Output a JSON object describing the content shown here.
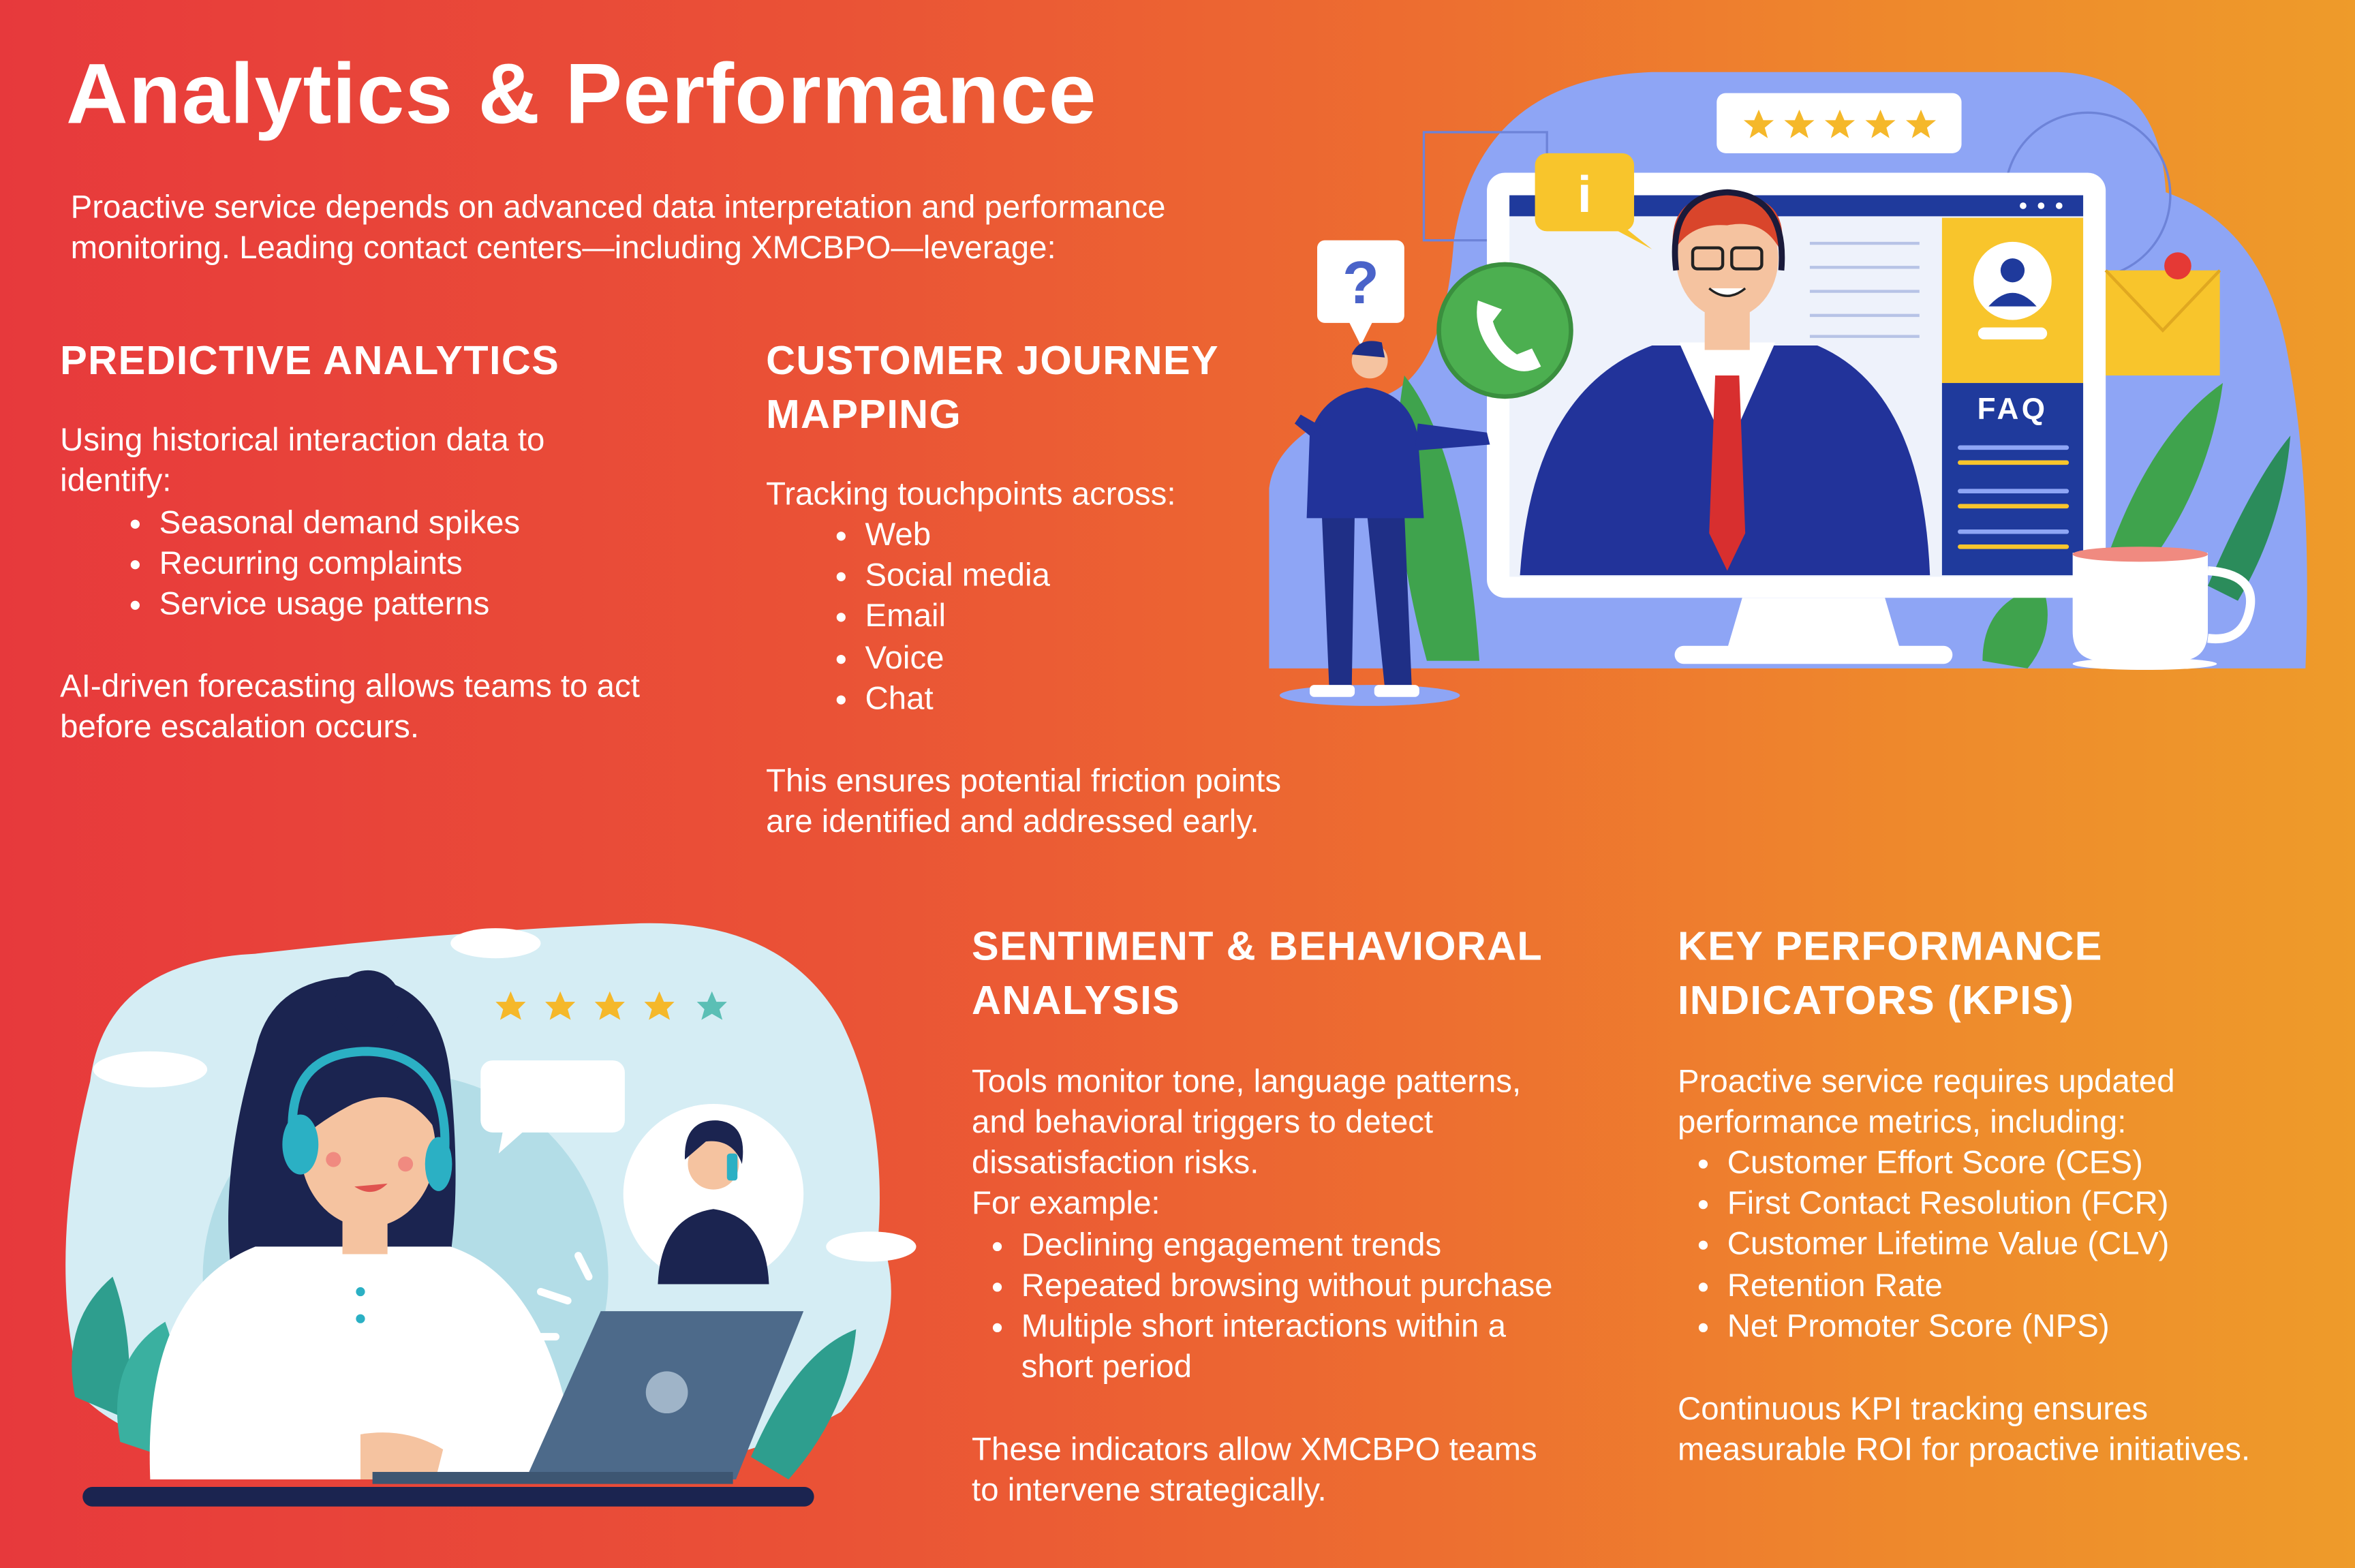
{
  "title": "Analytics & Performance",
  "intro": [
    "Proactive service depends on advanced data interpretation and performance",
    "monitoring. Leading contact centers—including XMCBPO—leverage:"
  ],
  "predictive": {
    "heading": "PREDICTIVE ANALYTICS",
    "lead": [
      "Using historical interaction data to",
      "identify:"
    ],
    "bullets": [
      "Seasonal demand spikes",
      "Recurring complaints",
      "Service usage patterns"
    ],
    "closing": [
      "AI-driven forecasting allows teams to act",
      "before escalation occurs."
    ]
  },
  "journey": {
    "heading": [
      "CUSTOMER JOURNEY",
      "MAPPING"
    ],
    "lead": "Tracking touchpoints across:",
    "bullets": [
      "Web",
      "Social media",
      "Email",
      "Voice",
      "Chat"
    ],
    "closing": [
      "This ensures potential friction points",
      "are identified and addressed early."
    ]
  },
  "sentiment": {
    "heading": [
      "SENTIMENT & BEHAVIORAL",
      "ANALYSIS"
    ],
    "lead": [
      "Tools monitor tone, language patterns,",
      "and behavioral triggers to detect",
      "dissatisfaction risks.",
      "For example:"
    ],
    "bullets": [
      "Declining engagement trends",
      "Repeated browsing without purchase",
      "Multiple short interactions within a",
      "short period"
    ],
    "closing": [
      "These indicators allow XMCBPO teams",
      "to intervene strategically."
    ]
  },
  "kpi": {
    "heading": [
      "KEY PERFORMANCE",
      "INDICATORS (KPIS)"
    ],
    "lead": [
      "Proactive service requires updated",
      "performance metrics, including:"
    ],
    "bullets": [
      "Customer Effort Score (CES)",
      "First Contact Resolution (FCR)",
      "Customer Lifetime Value (CLV)",
      "Retention Rate",
      "Net Promoter Score (NPS)"
    ],
    "closing": [
      "Continuous KPI tracking ensures",
      "measurable ROI for proactive initiatives."
    ]
  },
  "illustration": {
    "faq_label": "FAQ",
    "info_glyph": "i",
    "question_glyph": "?",
    "rating_stars": 5,
    "icons": [
      "star-icon",
      "info-icon",
      "question-icon",
      "phone-icon",
      "envelope-icon",
      "user-profile-icon",
      "headset-icon",
      "laptop-icon"
    ]
  },
  "colors": {
    "gradient_left": "#e7393c",
    "gradient_right": "#ee9b2a",
    "illustration_blue": "#8ea5f5",
    "accent_yellow": "#f8c52c",
    "navy": "#1f2f86"
  }
}
